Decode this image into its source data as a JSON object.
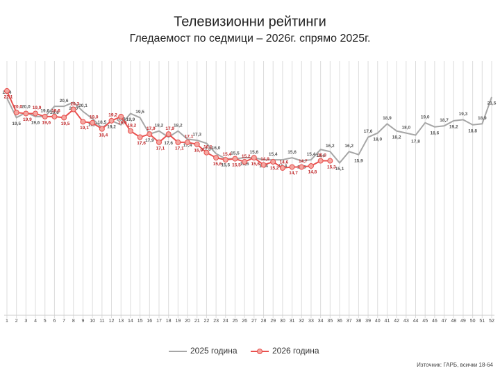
{
  "chart_data": {
    "type": "line",
    "title": "Телевизионни рейтинги",
    "subtitle": "Гледаемост по седмици – 2026г. спрямо 2025г.",
    "source": "Източник: ГАРБ, всички 18-64",
    "categories": [
      "1",
      "2",
      "3",
      "4",
      "5",
      "6",
      "7",
      "8",
      "9",
      "10",
      "11",
      "12",
      "13",
      "14",
      "15",
      "16",
      "17",
      "18",
      "19",
      "20",
      "21",
      "22",
      "23",
      "24",
      "25",
      "26",
      "27",
      "28",
      "29",
      "30",
      "31",
      "32",
      "33",
      "34",
      "35",
      "36",
      "37",
      "38",
      "39",
      "40",
      "41",
      "42",
      "43",
      "44",
      "45",
      "46",
      "47",
      "48",
      "49",
      "50",
      "51",
      "52"
    ],
    "ylim": [
      0,
      25
    ],
    "grid": true,
    "legend": "bottom",
    "series": [
      {
        "name": "2025 година",
        "color": "#a6a6a6",
        "values": [
          21.4,
          19.5,
          20.0,
          19.6,
          19.6,
          20.6,
          20.6,
          21.0,
          20.1,
          19.4,
          18.5,
          19.2,
          18.8,
          19.9,
          19.5,
          17.9,
          18.2,
          17.6,
          18.2,
          17.4,
          17.3,
          17.0,
          16.0,
          15.5,
          15.5,
          15.6,
          15.6,
          15.4,
          15.4,
          15.4,
          15.6,
          15.3,
          15.4,
          16.4,
          16.2,
          15.1,
          16.2,
          15.9,
          17.6,
          18.0,
          18.9,
          18.2,
          18.0,
          17.8,
          19.0,
          18.6,
          18.7,
          19.2,
          19.3,
          18.8,
          18.9,
          21.5
        ],
        "value_labels": [
          "21,4",
          "19,5",
          "20,0",
          "19,6",
          "19,6",
          "20,6",
          "20,6",
          "21,0",
          "20,1",
          "19,4",
          "18,5",
          "19,2",
          "18,8",
          "19,9",
          "19,5",
          "17,9",
          "18,2",
          "17,6",
          "18,2",
          "17,4",
          "17,3",
          "17,0",
          "16,0",
          "15,5",
          "15,5",
          "15,6",
          "15,6",
          "15,4",
          "15,4",
          "15,4",
          "15,6",
          "15,3",
          "15,4",
          "16,4",
          "16,2",
          "15,1",
          "16,2",
          "15,9",
          "17,6",
          "18,0",
          "18,9",
          "18,2",
          "18,0",
          "17,8",
          "19,0",
          "18,6",
          "18,7",
          "19,2",
          "19,3",
          "18,8",
          "18,9",
          "21,5"
        ]
      },
      {
        "name": "2026 година",
        "color": "#e8514f",
        "values": [
          22.1,
          20.0,
          19.9,
          19.9,
          19.6,
          19.6,
          19.5,
          20.3,
          19.1,
          19.0,
          18.4,
          19.2,
          19.6,
          18.2,
          17.6,
          17.9,
          17.1,
          17.9,
          17.1,
          17.1,
          16.9,
          16.1,
          15.6,
          15.4,
          15.5,
          15.2,
          15.6,
          14.9,
          15.2,
          14.6,
          14.7,
          14.7,
          14.8,
          15.3,
          15.3,
          null,
          null,
          null,
          null,
          null,
          null,
          null,
          null,
          null,
          null,
          null,
          null,
          null,
          null,
          null,
          null,
          null
        ],
        "value_labels": [
          "22,1",
          "20,0",
          "19,9",
          "19,9",
          "19,6",
          "19,6",
          "19,5",
          "20,3",
          "19,1",
          "19,0",
          "18,4",
          "19,2",
          "19,6",
          "18,2",
          "17,6",
          "17,9",
          "17,1",
          "17,9",
          "17,1",
          "17,1",
          "16,9",
          "16,1",
          "15,6",
          "15,4",
          "15,5",
          "15,2",
          "15,6",
          "14,9",
          "15,2",
          "14,6",
          "14,7",
          "14,7",
          "14,8",
          "15,3",
          "15,3",
          null,
          null,
          null,
          null,
          null,
          null,
          null,
          null,
          null,
          null,
          null,
          null,
          null,
          null,
          null,
          null,
          null
        ]
      }
    ]
  }
}
